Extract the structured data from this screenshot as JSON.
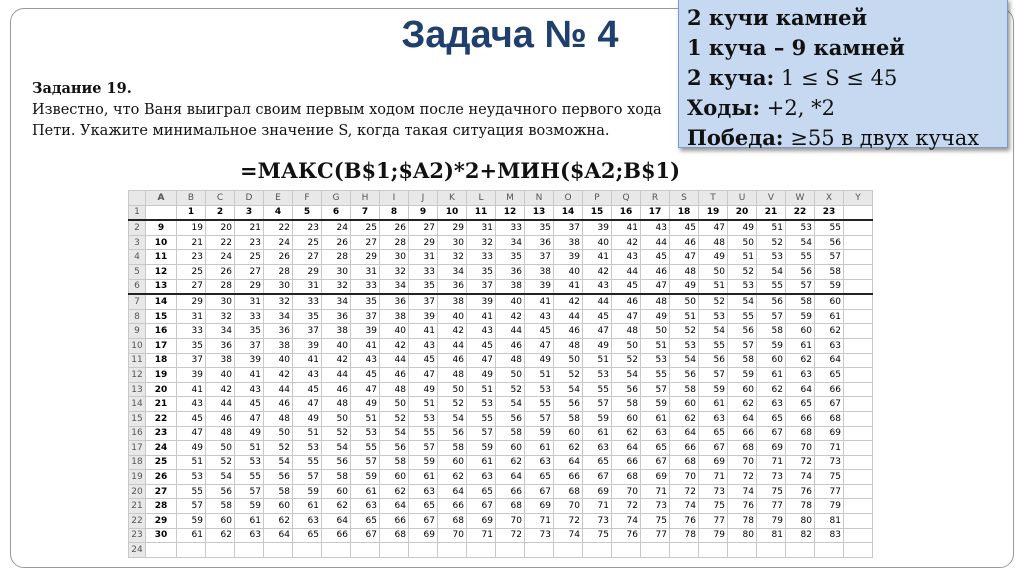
{
  "title": "Задача № 4",
  "task": {
    "label": "Задание 19.",
    "text": "Известно, что Ваня выиграл своим первым ходом после неудачного первого хода Пети. Укажите минимальное значение S, когда такая ситуация возможна."
  },
  "formula": "=МАКС(B$1;$A2)*2+МИН($A2;B$1)",
  "info_box": {
    "line1": "2 кучи камней",
    "line2": "1 куча – 9 камней",
    "line3_label": "2 куча:",
    "line3_value": " 1 ≤ S ≤ 45",
    "line4_label": "Ходы:",
    "line4_value": " +2, *2",
    "line5_label": "Победа:",
    "line5_value": " ≥55 в двух кучах"
  },
  "sheet": {
    "columns": [
      "A",
      "B",
      "C",
      "D",
      "E",
      "F",
      "G",
      "H",
      "I",
      "J",
      "K",
      "L",
      "M",
      "N",
      "O",
      "P",
      "Q",
      "R",
      "S",
      "T",
      "U",
      "V",
      "W",
      "X",
      "Y"
    ],
    "header_row": [
      "",
      "1",
      "2",
      "3",
      "4",
      "5",
      "6",
      "7",
      "8",
      "9",
      "10",
      "11",
      "12",
      "13",
      "14",
      "15",
      "16",
      "17",
      "18",
      "19",
      "20",
      "21",
      "22",
      "23",
      ""
    ],
    "row_labels": [
      9,
      10,
      11,
      12,
      13,
      14,
      15,
      16,
      17,
      18,
      19,
      20,
      21,
      22,
      23,
      24,
      25,
      26,
      27,
      28,
      29,
      30
    ],
    "rows": [
      [
        19,
        20,
        21,
        22,
        23,
        24,
        25,
        26,
        27,
        29,
        31,
        33,
        35,
        37,
        39,
        41,
        43,
        45,
        47,
        49,
        51,
        53,
        55
      ],
      [
        21,
        22,
        23,
        24,
        25,
        26,
        27,
        28,
        29,
        30,
        32,
        34,
        36,
        38,
        40,
        42,
        44,
        46,
        48,
        50,
        52,
        54,
        56
      ],
      [
        23,
        24,
        25,
        26,
        27,
        28,
        29,
        30,
        31,
        32,
        33,
        35,
        37,
        39,
        41,
        43,
        45,
        47,
        49,
        51,
        53,
        55,
        57
      ],
      [
        25,
        26,
        27,
        28,
        29,
        30,
        31,
        32,
        33,
        34,
        35,
        36,
        38,
        40,
        42,
        44,
        46,
        48,
        50,
        52,
        54,
        56,
        58
      ],
      [
        27,
        28,
        29,
        30,
        31,
        32,
        33,
        34,
        35,
        36,
        37,
        38,
        39,
        41,
        43,
        45,
        47,
        49,
        51,
        53,
        55,
        57,
        59
      ],
      [
        29,
        30,
        31,
        32,
        33,
        34,
        35,
        36,
        37,
        38,
        39,
        40,
        41,
        42,
        44,
        46,
        48,
        50,
        52,
        54,
        56,
        58,
        60
      ],
      [
        31,
        32,
        33,
        34,
        35,
        36,
        37,
        38,
        39,
        40,
        41,
        42,
        43,
        44,
        45,
        47,
        49,
        51,
        53,
        55,
        57,
        59,
        61
      ],
      [
        33,
        34,
        35,
        36,
        37,
        38,
        39,
        40,
        41,
        42,
        43,
        44,
        45,
        46,
        47,
        48,
        50,
        52,
        54,
        56,
        58,
        60,
        62
      ],
      [
        35,
        36,
        37,
        38,
        39,
        40,
        41,
        42,
        43,
        44,
        45,
        46,
        47,
        48,
        49,
        50,
        51,
        53,
        55,
        57,
        59,
        61,
        63
      ],
      [
        37,
        38,
        39,
        40,
        41,
        42,
        43,
        44,
        45,
        46,
        47,
        48,
        49,
        50,
        51,
        52,
        53,
        54,
        56,
        58,
        60,
        62,
        64
      ],
      [
        39,
        40,
        41,
        42,
        43,
        44,
        45,
        46,
        47,
        48,
        49,
        50,
        51,
        52,
        53,
        54,
        55,
        56,
        57,
        59,
        61,
        63,
        65
      ],
      [
        41,
        42,
        43,
        44,
        45,
        46,
        47,
        48,
        49,
        50,
        51,
        52,
        53,
        54,
        55,
        56,
        57,
        58,
        59,
        60,
        62,
        64,
        66
      ],
      [
        43,
        44,
        45,
        46,
        47,
        48,
        49,
        50,
        51,
        52,
        53,
        54,
        55,
        56,
        57,
        58,
        59,
        60,
        61,
        62,
        63,
        65,
        67
      ],
      [
        45,
        46,
        47,
        48,
        49,
        50,
        51,
        52,
        53,
        54,
        55,
        56,
        57,
        58,
        59,
        60,
        61,
        62,
        63,
        64,
        65,
        66,
        68
      ],
      [
        47,
        48,
        49,
        50,
        51,
        52,
        53,
        54,
        55,
        56,
        57,
        58,
        59,
        60,
        61,
        62,
        63,
        64,
        65,
        66,
        67,
        68,
        69
      ],
      [
        49,
        50,
        51,
        52,
        53,
        54,
        55,
        56,
        57,
        58,
        59,
        60,
        61,
        62,
        63,
        64,
        65,
        66,
        67,
        68,
        69,
        70,
        71
      ],
      [
        51,
        52,
        53,
        54,
        55,
        56,
        57,
        58,
        59,
        60,
        61,
        62,
        63,
        64,
        65,
        66,
        67,
        68,
        69,
        70,
        71,
        72,
        73
      ],
      [
        53,
        54,
        55,
        56,
        57,
        58,
        59,
        60,
        61,
        62,
        63,
        64,
        65,
        66,
        67,
        68,
        69,
        70,
        71,
        72,
        73,
        74,
        75
      ],
      [
        55,
        56,
        57,
        58,
        59,
        60,
        61,
        62,
        63,
        64,
        65,
        66,
        67,
        68,
        69,
        70,
        71,
        72,
        73,
        74,
        75,
        76,
        77
      ],
      [
        57,
        58,
        59,
        60,
        61,
        62,
        63,
        64,
        65,
        66,
        67,
        68,
        69,
        70,
        71,
        72,
        73,
        74,
        75,
        76,
        77,
        78,
        79
      ],
      [
        59,
        60,
        61,
        62,
        63,
        64,
        65,
        66,
        67,
        68,
        69,
        70,
        71,
        72,
        73,
        74,
        75,
        76,
        77,
        78,
        79,
        80,
        81
      ],
      [
        61,
        62,
        63,
        64,
        65,
        66,
        67,
        68,
        69,
        70,
        71,
        72,
        73,
        74,
        75,
        76,
        77,
        78,
        79,
        80,
        81,
        82,
        83
      ]
    ]
  }
}
